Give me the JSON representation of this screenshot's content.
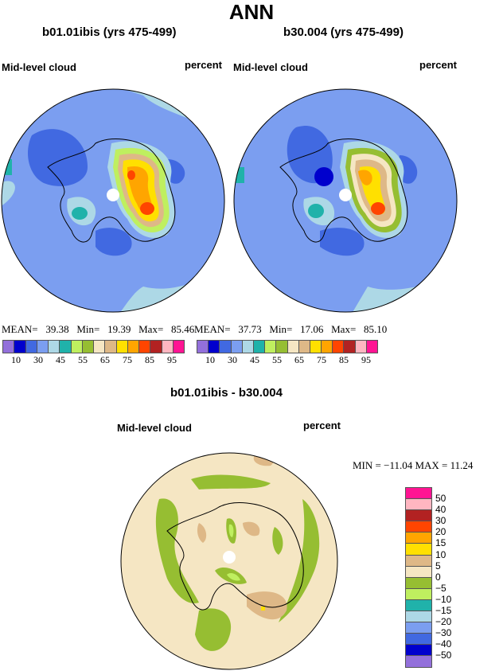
{
  "title": "ANN",
  "panels": [
    {
      "subtitle": "b01.01ibis (yrs 475-499)",
      "left_label": "Mid-level cloud",
      "right_label": "percent",
      "stats": {
        "mean_label": "MEAN=",
        "mean": "39.38",
        "min_label": "Min=",
        "min": "19.39",
        "max_label": "Max=",
        "max": "85.46"
      }
    },
    {
      "subtitle": "b30.004 (yrs 475-499)",
      "left_label": "Mid-level cloud",
      "right_label": "percent",
      "stats": {
        "mean_label": "MEAN=",
        "mean": "37.73",
        "min_label": "Min=",
        "min": "17.06",
        "max_label": "Max=",
        "max": "85.10"
      }
    }
  ],
  "colorbar": {
    "labels": [
      "10",
      "30",
      "45",
      "55",
      "65",
      "75",
      "85",
      "95"
    ],
    "colors": [
      "#9370DB",
      "#0000CD",
      "#4169E1",
      "#7B9EF0",
      "#ADD8E6",
      "#20B2AA",
      "#BFEF5F",
      "#96BE32",
      "#F5E6C3",
      "#DEB887",
      "#FFE000",
      "#FFA500",
      "#FF4500",
      "#B22222",
      "#FFB6C1",
      "#FF1493"
    ]
  },
  "difference": {
    "subtitle": "b01.01ibis - b30.004",
    "left_label": "Mid-level cloud",
    "right_label": "percent",
    "minmax": "MIN = −11.04  MAX =  11.24",
    "colorbar": {
      "labels": [
        "50",
        "40",
        "30",
        "20",
        "15",
        "10",
        "5",
        "0",
        "−5",
        "−10",
        "−15",
        "−20",
        "−30",
        "−40",
        "−50"
      ],
      "colors": [
        "#FF1493",
        "#FFB6C1",
        "#B22222",
        "#FF4500",
        "#FFA500",
        "#FFE000",
        "#DEB887",
        "#F5E6C3",
        "#96BE32",
        "#BFEF5F",
        "#20B2AA",
        "#ADD8E6",
        "#7B9EF0",
        "#4169E1",
        "#0000CD",
        "#9370DB"
      ]
    }
  }
}
